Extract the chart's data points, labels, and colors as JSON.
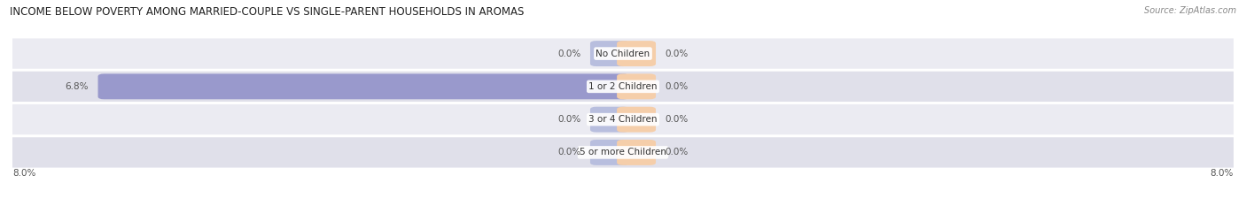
{
  "title": "INCOME BELOW POVERTY AMONG MARRIED-COUPLE VS SINGLE-PARENT HOUSEHOLDS IN AROMAS",
  "source_text": "Source: ZipAtlas.com",
  "categories": [
    "No Children",
    "1 or 2 Children",
    "3 or 4 Children",
    "5 or more Children"
  ],
  "married_values": [
    0.0,
    6.8,
    0.0,
    0.0
  ],
  "single_values": [
    0.0,
    0.0,
    0.0,
    0.0
  ],
  "married_color": "#9999cc",
  "single_color": "#f5b87a",
  "married_color_light": "#b8bede",
  "single_color_light": "#f5ceaa",
  "row_bg_colors": [
    "#ebebf2",
    "#e0e0ea",
    "#ebebf2",
    "#e0e0ea"
  ],
  "xlim_left": -8.0,
  "xlim_right": 8.0,
  "axis_label_left": "8.0%",
  "axis_label_right": "8.0%",
  "title_fontsize": 8.5,
  "label_fontsize": 7.5,
  "category_fontsize": 7.5,
  "source_fontsize": 7,
  "value_label_color": "#555555",
  "category_label_color": "#333333"
}
